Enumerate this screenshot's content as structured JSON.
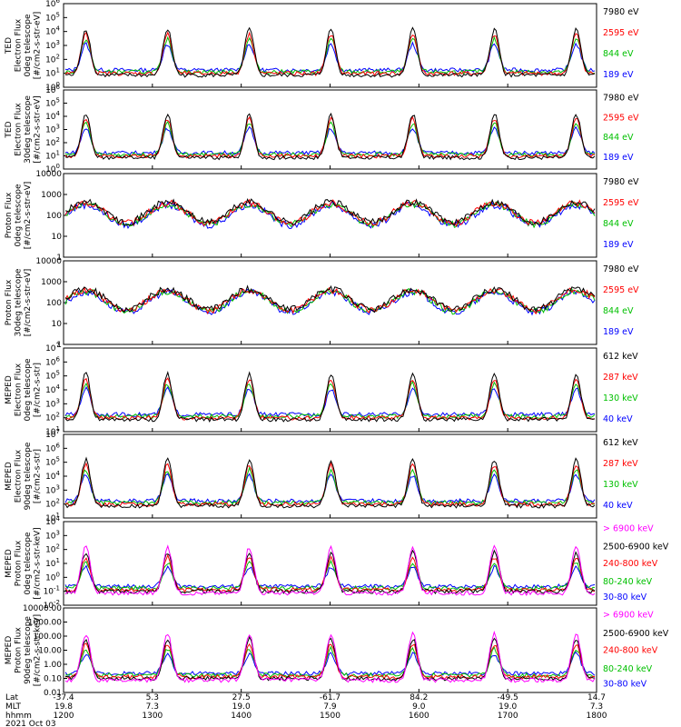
{
  "chart_data": [
    {
      "type": "line",
      "title": "",
      "ylabel": [
        "TED",
        "Electron Flux",
        "0deg telescope",
        "[#/cm2-s-str-eV]"
      ],
      "ylim": [
        1,
        1000000
      ],
      "ytick_labels": [
        "10^0",
        "10^1",
        "10^2",
        "10^3",
        "10^4",
        "10^5",
        "10^6"
      ],
      "ytick_values": [
        1,
        10,
        100,
        1000,
        10000,
        100000,
        1000000
      ],
      "series": [
        {
          "name": "7980 eV",
          "color": "#000000",
          "values": []
        },
        {
          "name": "2595 eV",
          "color": "#ff0000",
          "values": []
        },
        {
          "name": "844 eV",
          "color": "#00c000",
          "values": []
        },
        {
          "name": "189 eV",
          "color": "#0000ff",
          "values": []
        }
      ]
    },
    {
      "type": "line",
      "title": "",
      "ylabel": [
        "TED",
        "Electron Flux",
        "30deg telescope",
        "[#/cm2-s-str-eV]"
      ],
      "ylim": [
        1,
        1000000
      ],
      "ytick_labels": [
        "10^0",
        "10^1",
        "10^2",
        "10^3",
        "10^4",
        "10^5",
        "10^6"
      ],
      "ytick_values": [
        1,
        10,
        100,
        1000,
        10000,
        100000,
        1000000
      ],
      "series": [
        {
          "name": "7980 eV",
          "color": "#000000",
          "values": []
        },
        {
          "name": "2595 eV",
          "color": "#ff0000",
          "values": []
        },
        {
          "name": "844 eV",
          "color": "#00c000",
          "values": []
        },
        {
          "name": "189 eV",
          "color": "#0000ff",
          "values": []
        }
      ]
    },
    {
      "type": "line",
      "title": "",
      "ylabel": [
        "Proton Flux",
        "0deg telescope",
        "[#/cm2-s-str-eV]"
      ],
      "ylim": [
        1,
        10000
      ],
      "ytick_labels": [
        "1",
        "10",
        "100",
        "1000",
        "10000"
      ],
      "ytick_values": [
        1,
        10,
        100,
        1000,
        10000
      ],
      "series": [
        {
          "name": "7980 eV",
          "color": "#000000",
          "values": []
        },
        {
          "name": "2595 eV",
          "color": "#ff0000",
          "values": []
        },
        {
          "name": "844 eV",
          "color": "#00c000",
          "values": []
        },
        {
          "name": "189 eV",
          "color": "#0000ff",
          "values": []
        }
      ]
    },
    {
      "type": "line",
      "title": "",
      "ylabel": [
        "Proton Flux",
        "30deg telescope",
        "[#/cm2-s-str-eV]"
      ],
      "ylim": [
        1,
        10000
      ],
      "ytick_labels": [
        "1",
        "10",
        "100",
        "1000",
        "10000"
      ],
      "ytick_values": [
        1,
        10,
        100,
        1000,
        10000
      ],
      "series": [
        {
          "name": "7980 eV",
          "color": "#000000",
          "values": []
        },
        {
          "name": "2595 eV",
          "color": "#ff0000",
          "values": []
        },
        {
          "name": "844 eV",
          "color": "#00c000",
          "values": []
        },
        {
          "name": "189 eV",
          "color": "#0000ff",
          "values": []
        }
      ]
    },
    {
      "type": "line",
      "title": "",
      "ylabel": [
        "MEPED",
        "Electron Flux",
        "0deg telescope",
        "[#/cm2-s-str]"
      ],
      "ylim": [
        10,
        10000000
      ],
      "ytick_labels": [
        "10^1",
        "10^2",
        "10^3",
        "10^4",
        "10^5",
        "10^6",
        "10^7"
      ],
      "ytick_values": [
        10,
        100,
        1000,
        10000,
        100000,
        1000000,
        10000000
      ],
      "series": [
        {
          "name": "612 keV",
          "color": "#000000",
          "values": []
        },
        {
          "name": "287 keV",
          "color": "#ff0000",
          "values": []
        },
        {
          "name": "130 keV",
          "color": "#00c000",
          "values": []
        },
        {
          "name": "40 keV",
          "color": "#0000ff",
          "values": []
        }
      ]
    },
    {
      "type": "line",
      "title": "",
      "ylabel": [
        "MEPED",
        "Electron Flux",
        "90deg telescope",
        "[#/cm2-s-str]"
      ],
      "ylim": [
        10,
        10000000
      ],
      "ytick_labels": [
        "10^1",
        "10^2",
        "10^3",
        "10^4",
        "10^5",
        "10^6",
        "10^7"
      ],
      "ytick_values": [
        10,
        100,
        1000,
        10000,
        100000,
        1000000,
        10000000
      ],
      "series": [
        {
          "name": "612 keV",
          "color": "#000000",
          "values": []
        },
        {
          "name": "287 keV",
          "color": "#ff0000",
          "values": []
        },
        {
          "name": "130 keV",
          "color": "#00c000",
          "values": []
        },
        {
          "name": "40 keV",
          "color": "#0000ff",
          "values": []
        }
      ]
    },
    {
      "type": "line",
      "title": "",
      "ylabel": [
        "MEPED",
        "Proton Flux",
        "0deg telescope",
        "[#/cm2-s-str-keV]"
      ],
      "ylim": [
        0.01,
        10000
      ],
      "ytick_labels": [
        "10^-2",
        "10^-1",
        "10^0",
        "10^1",
        "10^2",
        "10^3",
        "10^4"
      ],
      "ytick_values": [
        0.01,
        0.1,
        1,
        10,
        100,
        1000,
        10000
      ],
      "series": [
        {
          "name": "> 6900 keV",
          "color": "#ff00ff",
          "values": []
        },
        {
          "name": "2500-6900 keV",
          "color": "#000000",
          "values": []
        },
        {
          "name": "240-800 keV",
          "color": "#ff0000",
          "values": []
        },
        {
          "name": "80-240 keV",
          "color": "#00c000",
          "values": []
        },
        {
          "name": "30-80 keV",
          "color": "#0000ff",
          "values": []
        }
      ]
    },
    {
      "type": "line",
      "title": "",
      "ylabel": [
        "MEPED",
        "Proton Flux",
        "90deg telescope",
        "[#/cm2-s-str-keV]"
      ],
      "ylim": [
        0.01,
        10000
      ],
      "ytick_labels": [
        "0.01",
        "0.10",
        "1.00",
        "10.00",
        "100.00",
        "1000.00",
        "10000.00"
      ],
      "ytick_values": [
        0.01,
        0.1,
        1,
        10,
        100,
        1000,
        10000
      ],
      "series": [
        {
          "name": "> 6900 keV",
          "color": "#ff00ff",
          "values": []
        },
        {
          "name": "2500-6900 keV",
          "color": "#000000",
          "values": []
        },
        {
          "name": "240-800 keV",
          "color": "#ff0000",
          "values": []
        },
        {
          "name": "80-240 keV",
          "color": "#00c000",
          "values": []
        },
        {
          "name": "30-80 keV",
          "color": "#0000ff",
          "values": []
        }
      ]
    }
  ],
  "x_axis": {
    "row_labels": [
      "Lat",
      "MLT",
      "hhmm"
    ],
    "date": "2021 Oct 03",
    "ticks": [
      {
        "lat": "-37.4",
        "mlt": "19.8",
        "hhmm": "1200"
      },
      {
        "lat": "5.3",
        "mlt": "7.3",
        "hhmm": "1300"
      },
      {
        "lat": "27.5",
        "mlt": "19.0",
        "hhmm": "1400"
      },
      {
        "lat": "-61.7",
        "mlt": "7.9",
        "hhmm": "1500"
      },
      {
        "lat": "84.2",
        "mlt": "9.0",
        "hhmm": "1600"
      },
      {
        "lat": "-49.5",
        "mlt": "19.0",
        "hhmm": "1700"
      },
      {
        "lat": "14.7",
        "mlt": "7.3",
        "hhmm": "1800"
      }
    ]
  }
}
